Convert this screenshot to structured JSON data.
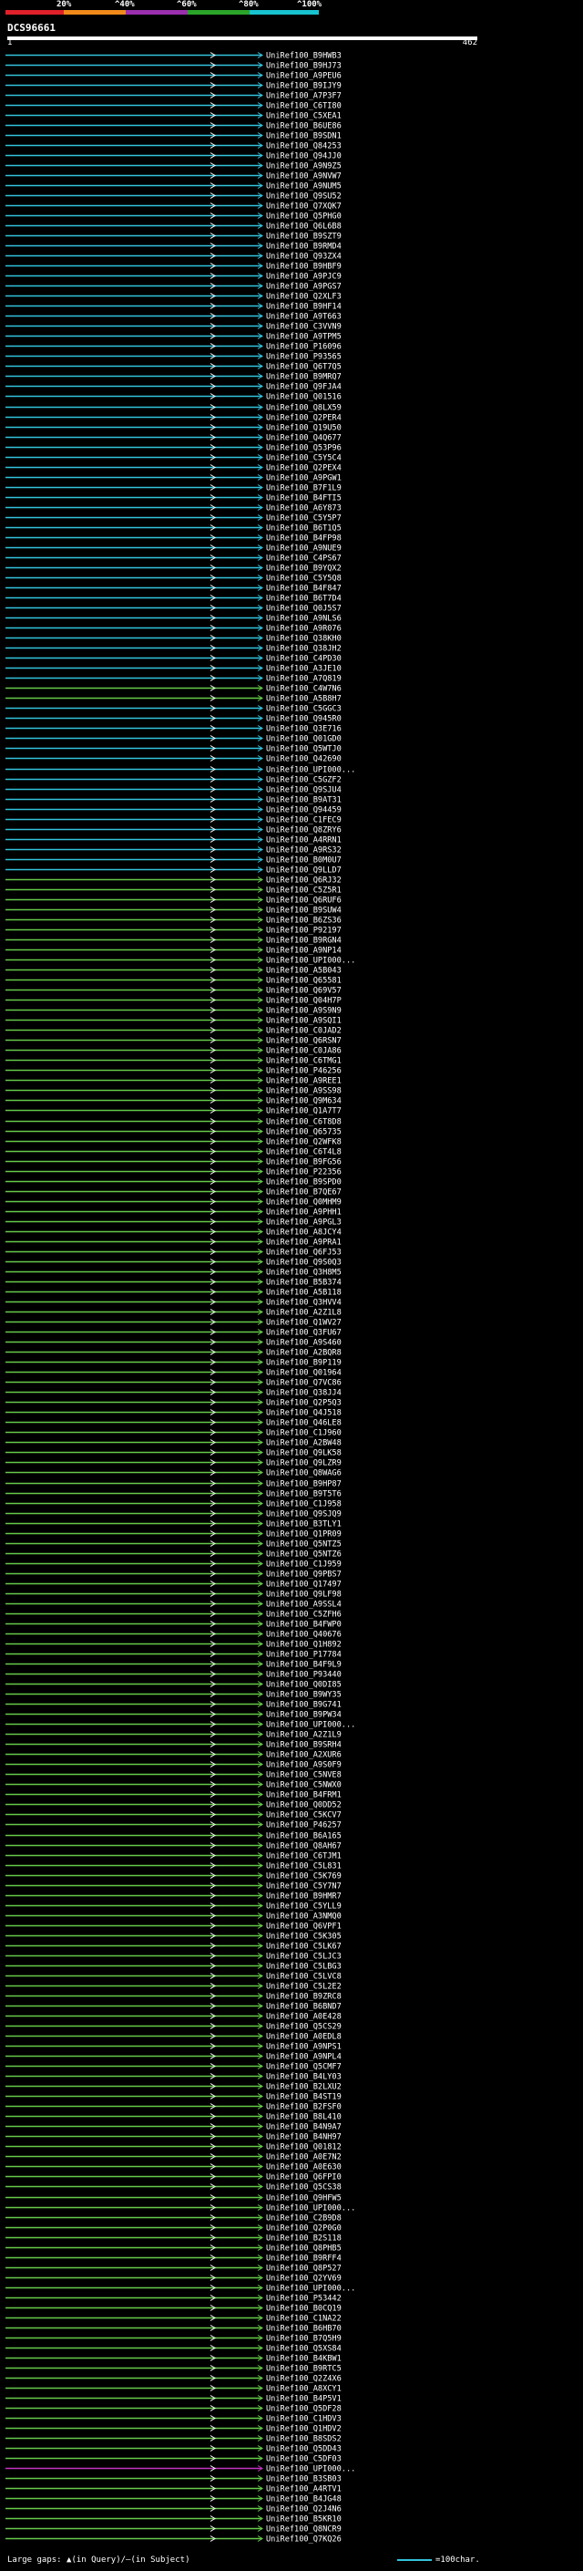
{
  "legend": {
    "labels": [
      "20%",
      "^40%",
      "^60%",
      "^80%",
      "^100%"
    ],
    "colors": [
      "#e0202a",
      "#f08a1a",
      "#9b2fae",
      "#2aa52a",
      "#17c3cf"
    ]
  },
  "query": {
    "name": "DCS96661",
    "start": "1",
    "end": "462"
  },
  "footer": {
    "left_text": "Large gaps: ▲(in Query)/—(in Subject)",
    "right_text": "=100char."
  },
  "colors": {
    "cyan": "#33c3dc",
    "green": "#66c94a",
    "purple": "#c033c0",
    "gap": "#111111"
  },
  "hits": [
    {
      "label": "UniRef100_B9HWB3",
      "color": "cyan"
    },
    {
      "label": "UniRef100_B9HJ73",
      "color": "cyan"
    },
    {
      "label": "UniRef100_A9PEU6",
      "color": "cyan"
    },
    {
      "label": "UniRef100_B9IJY9",
      "color": "cyan"
    },
    {
      "label": "UniRef100_A7P3F7",
      "color": "cyan"
    },
    {
      "label": "UniRef100_C6TI80",
      "color": "cyan"
    },
    {
      "label": "UniRef100_C5XEA1",
      "color": "cyan"
    },
    {
      "label": "UniRef100_B6UE86",
      "color": "cyan"
    },
    {
      "label": "UniRef100_B9SDN1",
      "color": "cyan"
    },
    {
      "label": "UniRef100_Q84253",
      "color": "cyan"
    },
    {
      "label": "UniRef100_Q94JJ0",
      "color": "cyan"
    },
    {
      "label": "UniRef100_A9N9Z5",
      "color": "cyan"
    },
    {
      "label": "UniRef100_A9NVW7",
      "color": "cyan"
    },
    {
      "label": "UniRef100_A9NUM5",
      "color": "cyan"
    },
    {
      "label": "UniRef100_Q9SU52",
      "color": "cyan"
    },
    {
      "label": "UniRef100_Q7XQK7",
      "color": "cyan"
    },
    {
      "label": "UniRef100_Q5PHG0",
      "color": "cyan"
    },
    {
      "label": "UniRef100_Q6L6B8",
      "color": "cyan"
    },
    {
      "label": "UniRef100_B9SZT9",
      "color": "cyan"
    },
    {
      "label": "UniRef100_B9RMD4",
      "color": "cyan"
    },
    {
      "label": "UniRef100_Q93ZX4",
      "color": "cyan"
    },
    {
      "label": "UniRef100_B9HBF9",
      "color": "cyan"
    },
    {
      "label": "UniRef100_A9PJC9",
      "color": "cyan"
    },
    {
      "label": "UniRef100_A9PGS7",
      "color": "cyan"
    },
    {
      "label": "UniRef100_Q2XLF3",
      "color": "cyan"
    },
    {
      "label": "UniRef100_B9HF14",
      "color": "cyan"
    },
    {
      "label": "UniRef100_A9T663",
      "color": "cyan"
    },
    {
      "label": "UniRef100_C3VVN9",
      "color": "cyan"
    },
    {
      "label": "UniRef100_A9TPM5",
      "color": "cyan"
    },
    {
      "label": "UniRef100_P16096",
      "color": "cyan"
    },
    {
      "label": "UniRef100_P93565",
      "color": "cyan"
    },
    {
      "label": "UniRef100_Q6T7Q5",
      "color": "cyan"
    },
    {
      "label": "UniRef100_B9MRQ7",
      "color": "cyan"
    },
    {
      "label": "UniRef100_Q9FJA4",
      "color": "cyan"
    },
    {
      "label": "UniRef100_Q01516",
      "color": "cyan"
    },
    {
      "label": "UniRef100_Q8LX59",
      "color": "cyan"
    },
    {
      "label": "UniRef100_Q2PER4",
      "color": "cyan"
    },
    {
      "label": "UniRef100_Q19U50",
      "color": "cyan"
    },
    {
      "label": "UniRef100_Q4Q677",
      "color": "cyan"
    },
    {
      "label": "UniRef100_Q53P96",
      "color": "cyan"
    },
    {
      "label": "UniRef100_C5Y5C4",
      "color": "cyan"
    },
    {
      "label": "UniRef100_Q2PEX4",
      "color": "cyan"
    },
    {
      "label": "UniRef100_A9PGW1",
      "color": "cyan"
    },
    {
      "label": "UniRef100_B7F1L9",
      "color": "cyan"
    },
    {
      "label": "UniRef100_B4FTI5",
      "color": "cyan"
    },
    {
      "label": "UniRef100_A6Y873",
      "color": "cyan"
    },
    {
      "label": "UniRef100_C5Y5P7",
      "color": "cyan"
    },
    {
      "label": "UniRef100_B6T1Q5",
      "color": "cyan"
    },
    {
      "label": "UniRef100_B4FP98",
      "color": "cyan"
    },
    {
      "label": "UniRef100_A9NUE9",
      "color": "cyan"
    },
    {
      "label": "UniRef100_C4PS67",
      "color": "cyan"
    },
    {
      "label": "UniRef100_B9YQX2",
      "color": "cyan"
    },
    {
      "label": "UniRef100_C5Y5Q8",
      "color": "cyan"
    },
    {
      "label": "UniRef100_B4F847",
      "color": "cyan"
    },
    {
      "label": "UniRef100_B6T7D4",
      "color": "cyan"
    },
    {
      "label": "UniRef100_Q0J5S7",
      "color": "cyan"
    },
    {
      "label": "UniRef100_A9NLS6",
      "color": "cyan"
    },
    {
      "label": "UniRef100_A9R076",
      "color": "cyan"
    },
    {
      "label": "UniRef100_Q38KH0",
      "color": "cyan"
    },
    {
      "label": "UniRef100_Q38JH2",
      "color": "cyan"
    },
    {
      "label": "UniRef100_C4PD30",
      "color": "cyan"
    },
    {
      "label": "UniRef100_A3JE10",
      "color": "cyan"
    },
    {
      "label": "UniRef100_A7Q819",
      "color": "cyan"
    },
    {
      "label": "UniRef100_C4W7N6",
      "color": "green"
    },
    {
      "label": "UniRef100_A5B8H7",
      "color": "green"
    },
    {
      "label": "UniRef100_C5GGC3",
      "color": "cyan"
    },
    {
      "label": "UniRef100_Q945R0",
      "color": "cyan"
    },
    {
      "label": "UniRef100_Q3E716",
      "color": "cyan"
    },
    {
      "label": "UniRef100_Q01GD0",
      "color": "cyan"
    },
    {
      "label": "UniRef100_Q5WTJ0",
      "color": "cyan"
    },
    {
      "label": "UniRef100_Q42690",
      "color": "cyan"
    },
    {
      "label": "UniRef100_UPI000...",
      "color": "cyan"
    },
    {
      "label": "UniRef100_C5GZF2",
      "color": "cyan"
    },
    {
      "label": "UniRef100_Q9SJU4",
      "color": "cyan"
    },
    {
      "label": "UniRef100_B9AT31",
      "color": "cyan"
    },
    {
      "label": "UniRef100_Q94459",
      "color": "cyan"
    },
    {
      "label": "UniRef100_C1FEC9",
      "color": "cyan"
    },
    {
      "label": "UniRef100_Q8ZRY6",
      "color": "cyan"
    },
    {
      "label": "UniRef100_A4RRN1",
      "color": "cyan"
    },
    {
      "label": "UniRef100_A9RS32",
      "color": "cyan"
    },
    {
      "label": "UniRef100_B0M0U7",
      "color": "cyan"
    },
    {
      "label": "UniRef100_Q9LLD7",
      "color": "cyan"
    },
    {
      "label": "UniRef100_Q6RJ32",
      "color": "green"
    },
    {
      "label": "UniRef100_C5Z5R1",
      "color": "green"
    },
    {
      "label": "UniRef100_Q6RUF6",
      "color": "green"
    },
    {
      "label": "UniRef100_B9SUW4",
      "color": "green"
    },
    {
      "label": "UniRef100_B6ZS36",
      "color": "green"
    },
    {
      "label": "UniRef100_P92197",
      "color": "green"
    },
    {
      "label": "UniRef100_B9RGN4",
      "color": "green"
    },
    {
      "label": "UniRef100_A9NP14",
      "color": "green"
    },
    {
      "label": "UniRef100_UPI000...",
      "color": "green"
    },
    {
      "label": "UniRef100_A5B043",
      "color": "green"
    },
    {
      "label": "UniRef100_Q65581",
      "color": "green"
    },
    {
      "label": "UniRef100_Q69V57",
      "color": "green"
    },
    {
      "label": "UniRef100_Q04H7P",
      "color": "green"
    },
    {
      "label": "UniRef100_A9S9N9",
      "color": "green"
    },
    {
      "label": "UniRef100_A9SQI1",
      "color": "green"
    },
    {
      "label": "UniRef100_C0JAD2",
      "color": "green"
    },
    {
      "label": "UniRef100_Q6RSN7",
      "color": "green"
    },
    {
      "label": "UniRef100_C0JA86",
      "color": "green"
    },
    {
      "label": "UniRef100_C6TMG1",
      "color": "green"
    },
    {
      "label": "UniRef100_P46256",
      "color": "green"
    },
    {
      "label": "UniRef100_A9REE1",
      "color": "green"
    },
    {
      "label": "UniRef100_A9SS98",
      "color": "green"
    },
    {
      "label": "UniRef100_Q9M634",
      "color": "green"
    },
    {
      "label": "UniRef100_Q1A7T7",
      "color": "green"
    },
    {
      "label": "UniRef100_C6T8D8",
      "color": "green"
    },
    {
      "label": "UniRef100_Q65735",
      "color": "green"
    },
    {
      "label": "UniRef100_Q2WFK8",
      "color": "green"
    },
    {
      "label": "UniRef100_C6T4L8",
      "color": "green"
    },
    {
      "label": "UniRef100_B9FG56",
      "color": "green"
    },
    {
      "label": "UniRef100_P22356",
      "color": "green"
    },
    {
      "label": "UniRef100_B9SPD0",
      "color": "green"
    },
    {
      "label": "UniRef100_B7QE67",
      "color": "green"
    },
    {
      "label": "UniRef100_Q0MHM9",
      "color": "green"
    },
    {
      "label": "UniRef100_A9PHH1",
      "color": "green"
    },
    {
      "label": "UniRef100_A9PGL3",
      "color": "green"
    },
    {
      "label": "UniRef100_A8JCY4",
      "color": "green"
    },
    {
      "label": "UniRef100_A9PRA1",
      "color": "green"
    },
    {
      "label": "UniRef100_Q6FJ53",
      "color": "green"
    },
    {
      "label": "UniRef100_Q9S0Q3",
      "color": "green"
    },
    {
      "label": "UniRef100_Q3H8M5",
      "color": "green"
    },
    {
      "label": "UniRef100_B5B374",
      "color": "green"
    },
    {
      "label": "UniRef100_A5B118",
      "color": "green"
    },
    {
      "label": "UniRef100_Q3HVV4",
      "color": "green"
    },
    {
      "label": "UniRef100_A2Z1L8",
      "color": "green"
    },
    {
      "label": "UniRef100_Q1WV27",
      "color": "green"
    },
    {
      "label": "UniRef100_Q3FU67",
      "color": "green"
    },
    {
      "label": "UniRef100_A9S460",
      "color": "green"
    },
    {
      "label": "UniRef100_A2BQR8",
      "color": "green"
    },
    {
      "label": "UniRef100_B9P119",
      "color": "green"
    },
    {
      "label": "UniRef100_Q01964",
      "color": "green"
    },
    {
      "label": "UniRef100_Q7VC86",
      "color": "green"
    },
    {
      "label": "UniRef100_Q38JJ4",
      "color": "green"
    },
    {
      "label": "UniRef100_Q2P5Q3",
      "color": "green"
    },
    {
      "label": "UniRef100_Q4J518",
      "color": "green"
    },
    {
      "label": "UniRef100_Q46LE8",
      "color": "green"
    },
    {
      "label": "UniRef100_C1J960",
      "color": "green"
    },
    {
      "label": "UniRef100_A2BW48",
      "color": "green"
    },
    {
      "label": "UniRef100_Q9LK58",
      "color": "green"
    },
    {
      "label": "UniRef100_Q9LZR9",
      "color": "green"
    },
    {
      "label": "UniRef100_Q8WAG6",
      "color": "green"
    },
    {
      "label": "UniRef100_B9HP87",
      "color": "green"
    },
    {
      "label": "UniRef100_B9T5T6",
      "color": "green"
    },
    {
      "label": "UniRef100_C1J958",
      "color": "green"
    },
    {
      "label": "UniRef100_Q9SJQ9",
      "color": "green"
    },
    {
      "label": "UniRef100_B3TLY1",
      "color": "green"
    },
    {
      "label": "UniRef100_Q1PR09",
      "color": "green"
    },
    {
      "label": "UniRef100_Q5NTZ5",
      "color": "green"
    },
    {
      "label": "UniRef100_Q5NTZ6",
      "color": "green"
    },
    {
      "label": "UniRef100_C1J959",
      "color": "green"
    },
    {
      "label": "UniRef100_Q9PBS7",
      "color": "green"
    },
    {
      "label": "UniRef100_Q17497",
      "color": "green"
    },
    {
      "label": "UniRef100_Q9LF98",
      "color": "green"
    },
    {
      "label": "UniRef100_A9SSL4",
      "color": "green"
    },
    {
      "label": "UniRef100_C5ZFH6",
      "color": "green"
    },
    {
      "label": "UniRef100_B4FWP0",
      "color": "green"
    },
    {
      "label": "UniRef100_Q40676",
      "color": "green"
    },
    {
      "label": "UniRef100_Q1H892",
      "color": "green"
    },
    {
      "label": "UniRef100_P17784",
      "color": "green"
    },
    {
      "label": "UniRef100_B4F9L9",
      "color": "green"
    },
    {
      "label": "UniRef100_P93440",
      "color": "green"
    },
    {
      "label": "UniRef100_Q0DI85",
      "color": "green"
    },
    {
      "label": "UniRef100_B9WY35",
      "color": "green"
    },
    {
      "label": "UniRef100_B9G741",
      "color": "green"
    },
    {
      "label": "UniRef100_B9PW34",
      "color": "green"
    },
    {
      "label": "UniRef100_UPI000...",
      "color": "green"
    },
    {
      "label": "UniRef100_A2Z1L9",
      "color": "green"
    },
    {
      "label": "UniRef100_B9SRH4",
      "color": "green"
    },
    {
      "label": "UniRef100_A2XUR6",
      "color": "green"
    },
    {
      "label": "UniRef100_A9S0F9",
      "color": "green"
    },
    {
      "label": "UniRef100_C5NVE8",
      "color": "green"
    },
    {
      "label": "UniRef100_C5NWX0",
      "color": "green"
    },
    {
      "label": "UniRef100_B4FRM1",
      "color": "green"
    },
    {
      "label": "UniRef100_Q0DD52",
      "color": "green"
    },
    {
      "label": "UniRef100_C5KCV7",
      "color": "green"
    },
    {
      "label": "UniRef100_P46257",
      "color": "green"
    },
    {
      "label": "UniRef100_B6A165",
      "color": "green"
    },
    {
      "label": "UniRef100_Q8AH67",
      "color": "green"
    },
    {
      "label": "UniRef100_C6TJM1",
      "color": "green"
    },
    {
      "label": "UniRef100_C5L831",
      "color": "green"
    },
    {
      "label": "UniRef100_C5K769",
      "color": "green"
    },
    {
      "label": "UniRef100_C5Y7N7",
      "color": "green"
    },
    {
      "label": "UniRef100_B9HMR7",
      "color": "green"
    },
    {
      "label": "UniRef100_C5YLL9",
      "color": "green"
    },
    {
      "label": "UniRef100_A3NMQ0",
      "color": "green"
    },
    {
      "label": "UniRef100_Q6VPF1",
      "color": "green"
    },
    {
      "label": "UniRef100_C5K305",
      "color": "green"
    },
    {
      "label": "UniRef100_C5LK67",
      "color": "green"
    },
    {
      "label": "UniRef100_C5LJC3",
      "color": "green"
    },
    {
      "label": "UniRef100_C5LBG3",
      "color": "green"
    },
    {
      "label": "UniRef100_C5LVC8",
      "color": "green"
    },
    {
      "label": "UniRef100_C5L2E2",
      "color": "green"
    },
    {
      "label": "UniRef100_B9ZRC8",
      "color": "green"
    },
    {
      "label": "UniRef100_B6BND7",
      "color": "green"
    },
    {
      "label": "UniRef100_A0E428",
      "color": "green"
    },
    {
      "label": "UniRef100_Q5CS29",
      "color": "green"
    },
    {
      "label": "UniRef100_A0EDL8",
      "color": "green"
    },
    {
      "label": "UniRef100_A9NPS1",
      "color": "green"
    },
    {
      "label": "UniRef100_A9NPL4",
      "color": "green"
    },
    {
      "label": "UniRef100_Q5CMF7",
      "color": "green"
    },
    {
      "label": "UniRef100_B4LY03",
      "color": "green"
    },
    {
      "label": "UniRef100_B2LXU2",
      "color": "green"
    },
    {
      "label": "UniRef100_B4ST19",
      "color": "green"
    },
    {
      "label": "UniRef100_B2FSF0",
      "color": "green"
    },
    {
      "label": "UniRef100_B8L410",
      "color": "green"
    },
    {
      "label": "UniRef100_B4N9A7",
      "color": "green"
    },
    {
      "label": "UniRef100_B4NH97",
      "color": "green"
    },
    {
      "label": "UniRef100_Q01812",
      "color": "green"
    },
    {
      "label": "UniRef100_A0E7N2",
      "color": "green"
    },
    {
      "label": "UniRef100_A0E630",
      "color": "green"
    },
    {
      "label": "UniRef100_Q6FPI0",
      "color": "green"
    },
    {
      "label": "UniRef100_Q5CS38",
      "color": "green"
    },
    {
      "label": "UniRef100_Q9HFW5",
      "color": "green"
    },
    {
      "label": "UniRef100_UPI000...",
      "color": "green"
    },
    {
      "label": "UniRef100_C2B9D8",
      "color": "green"
    },
    {
      "label": "UniRef100_Q2P0G0",
      "color": "green"
    },
    {
      "label": "UniRef100_B2S118",
      "color": "green"
    },
    {
      "label": "UniRef100_Q8PHB5",
      "color": "green"
    },
    {
      "label": "UniRef100_B9RFF4",
      "color": "green"
    },
    {
      "label": "UniRef100_Q8P527",
      "color": "green"
    },
    {
      "label": "UniRef100_Q2YV69",
      "color": "green"
    },
    {
      "label": "UniRef100_UPI000...",
      "color": "green"
    },
    {
      "label": "UniRef100_P53442",
      "color": "green"
    },
    {
      "label": "UniRef100_B0CQ19",
      "color": "green"
    },
    {
      "label": "UniRef100_C1NA22",
      "color": "green"
    },
    {
      "label": "UniRef100_B6HB70",
      "color": "green"
    },
    {
      "label": "UniRef100_B7Q5H9",
      "color": "green"
    },
    {
      "label": "UniRef100_Q5XS84",
      "color": "green"
    },
    {
      "label": "UniRef100_B4KBW1",
      "color": "green"
    },
    {
      "label": "UniRef100_B9RTC5",
      "color": "green"
    },
    {
      "label": "UniRef100_Q2Z4X6",
      "color": "green"
    },
    {
      "label": "UniRef100_A8XCY1",
      "color": "green"
    },
    {
      "label": "UniRef100_B4P5V1",
      "color": "green"
    },
    {
      "label": "UniRef100_Q5DF28",
      "color": "green"
    },
    {
      "label": "UniRef100_C1HDV3",
      "color": "green"
    },
    {
      "label": "UniRef100_Q1HDV2",
      "color": "green"
    },
    {
      "label": "UniRef100_B8SDS2",
      "color": "green"
    },
    {
      "label": "UniRef100_Q5DD43",
      "color": "green"
    },
    {
      "label": "UniRef100_C5DF03",
      "color": "green"
    },
    {
      "label": "UniRef100_UPI000...",
      "color": "purple"
    },
    {
      "label": "UniRef100_B3SB03",
      "color": "green"
    },
    {
      "label": "UniRef100_A4RTV1",
      "color": "green"
    },
    {
      "label": "UniRef100_B4JG48",
      "color": "green"
    },
    {
      "label": "UniRef100_Q2J4N6",
      "color": "green"
    },
    {
      "label": "UniRef100_B5KR10",
      "color": "green"
    },
    {
      "label": "UniRef100_Q8NCR9",
      "color": "green"
    },
    {
      "label": "UniRef100_Q7KQ26",
      "color": "green"
    }
  ]
}
